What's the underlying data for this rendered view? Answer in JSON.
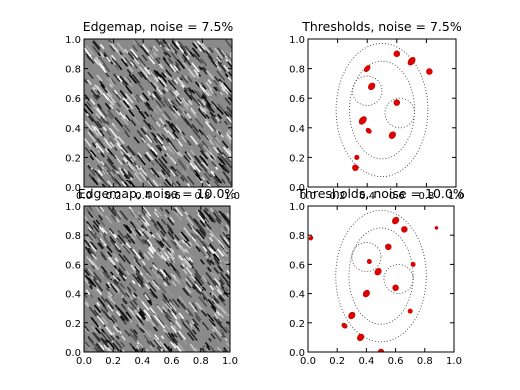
{
  "chart_data": [
    {
      "type": "edgemap",
      "title": "Edgemap, noise = 7.5%",
      "xlim": [
        0,
        1
      ],
      "ylim": [
        0,
        1
      ],
      "xticks": [
        {
          "value": 0,
          "label": "0.0"
        },
        {
          "value": 0.2,
          "label": "0.2"
        },
        {
          "value": 0.4,
          "label": "0.4"
        },
        {
          "value": 0.6,
          "label": "0.6"
        },
        {
          "value": 0.8,
          "label": "0.8"
        },
        {
          "value": 1,
          "label": "1.0"
        }
      ],
      "yticks": [
        {
          "value": 0,
          "label": "0.0"
        },
        {
          "value": 0.2,
          "label": "0.2"
        },
        {
          "value": 0.4,
          "label": "0.4"
        },
        {
          "value": 0.6,
          "label": "0.6"
        },
        {
          "value": 0.8,
          "label": "0.8"
        },
        {
          "value": 1,
          "label": "1.0"
        }
      ]
    },
    {
      "type": "thresholds",
      "title": "Thresholds, noise = 7.5%",
      "xlim": [
        0,
        1
      ],
      "ylim": [
        0,
        1
      ],
      "xticks": [
        {
          "value": 0,
          "label": "0.0"
        },
        {
          "value": 0.2,
          "label": "0.2"
        },
        {
          "value": 0.4,
          "label": "0.4"
        },
        {
          "value": 0.6,
          "label": "0.6"
        },
        {
          "value": 0.8,
          "label": "0.8"
        },
        {
          "value": 1,
          "label": "1.0"
        }
      ],
      "yticks": [
        {
          "value": 0,
          "label": "0.0"
        },
        {
          "value": 0.2,
          "label": "0.2"
        },
        {
          "value": 0.4,
          "label": "0.4"
        },
        {
          "value": 0.6,
          "label": "0.6"
        },
        {
          "value": 0.8,
          "label": "0.8"
        },
        {
          "value": 1,
          "label": "1.0"
        }
      ]
    },
    {
      "type": "edgemap",
      "title": "Edgemap, noise = 10.0%",
      "xlim": [
        0,
        1
      ],
      "ylim": [
        0,
        1
      ],
      "xticks": [
        {
          "value": 0,
          "label": "0.0"
        },
        {
          "value": 0.2,
          "label": "0.2"
        },
        {
          "value": 0.4,
          "label": "0.4"
        },
        {
          "value": 0.6,
          "label": "0.6"
        },
        {
          "value": 0.8,
          "label": "0.8"
        },
        {
          "value": 1,
          "label": "1.0"
        }
      ],
      "yticks": [
        {
          "value": 0,
          "label": "0.0"
        },
        {
          "value": 0.2,
          "label": "0.2"
        },
        {
          "value": 0.4,
          "label": "0.4"
        },
        {
          "value": 0.6,
          "label": "0.6"
        },
        {
          "value": 0.8,
          "label": "0.8"
        },
        {
          "value": 1,
          "label": "1.0"
        }
      ]
    },
    {
      "type": "thresholds",
      "title": "Thresholds, noise = 10.0%",
      "xlim": [
        0,
        1
      ],
      "ylim": [
        0,
        1
      ],
      "xticks": [
        {
          "value": 0,
          "label": "0.0"
        },
        {
          "value": 0.2,
          "label": "0.2"
        },
        {
          "value": 0.4,
          "label": "0.4"
        },
        {
          "value": 0.6,
          "label": "0.6"
        },
        {
          "value": 0.8,
          "label": "0.8"
        },
        {
          "value": 1,
          "label": "1.0"
        }
      ],
      "yticks": [
        {
          "value": 0,
          "label": "0.0"
        },
        {
          "value": 0.2,
          "label": "0.2"
        },
        {
          "value": 0.4,
          "label": "0.4"
        },
        {
          "value": 0.6,
          "label": "0.6"
        },
        {
          "value": 0.8,
          "label": "0.8"
        },
        {
          "value": 1,
          "label": "1.0"
        }
      ]
    }
  ]
}
